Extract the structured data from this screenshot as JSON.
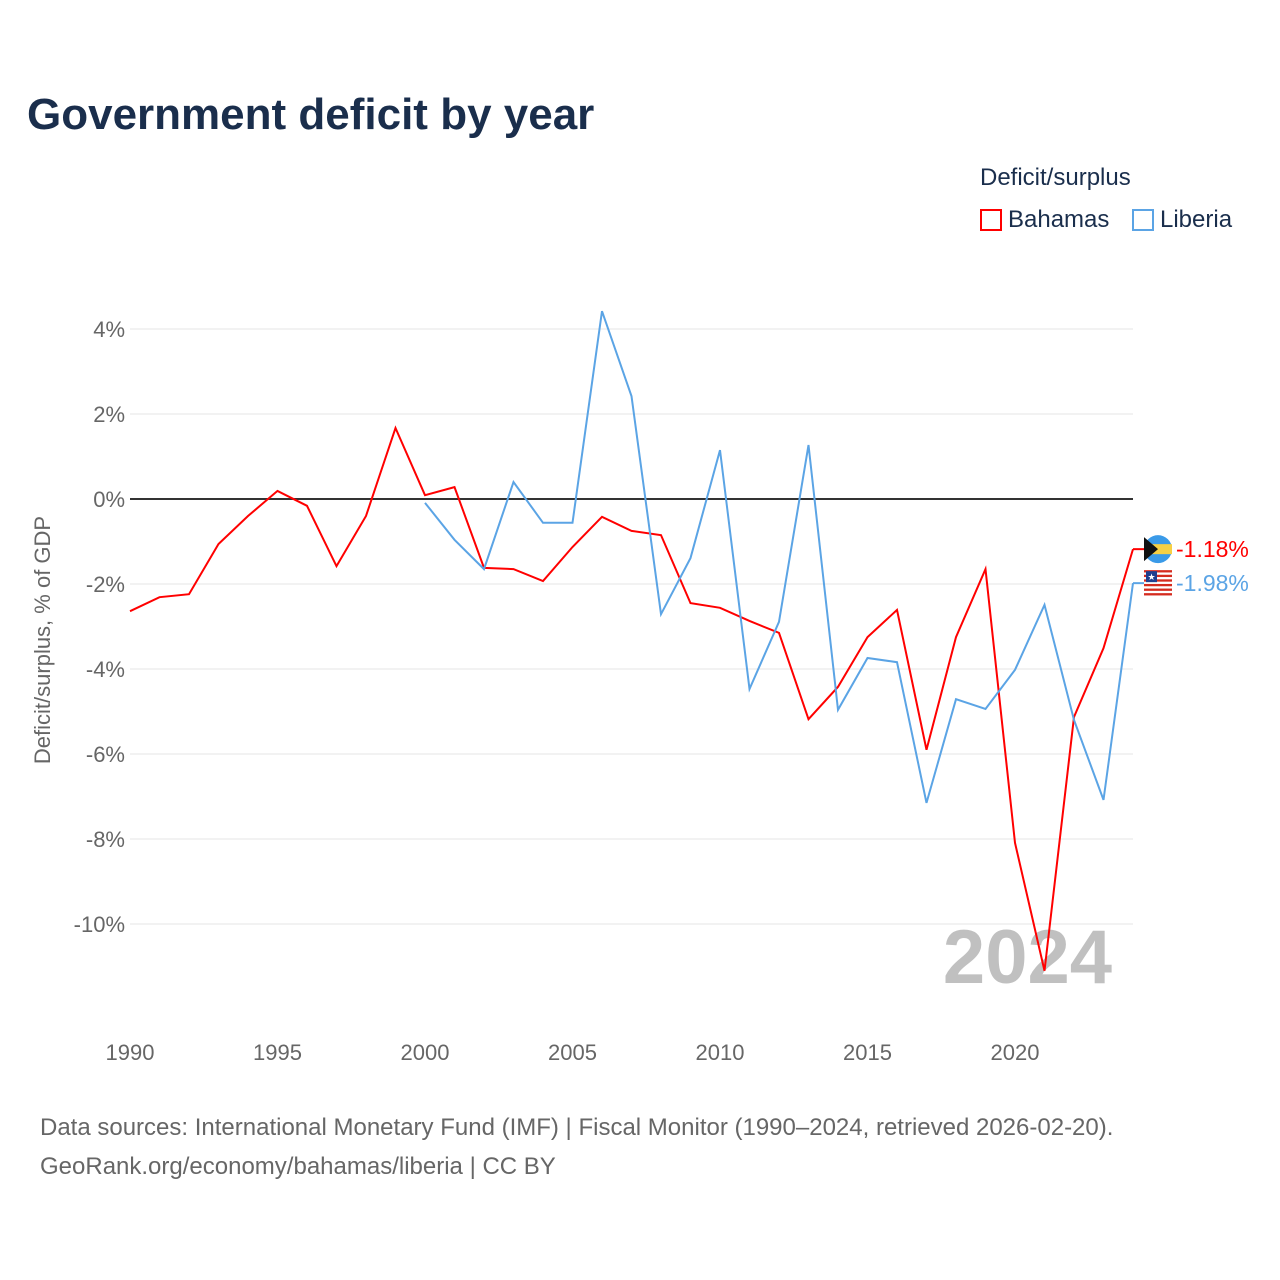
{
  "title": "Government deficit by year",
  "legend": {
    "title": "Deficit/surplus",
    "items": [
      {
        "label": "Bahamas",
        "color": "#ff0000"
      },
      {
        "label": "Liberia",
        "color": "#5ba4e5"
      }
    ]
  },
  "source": {
    "line1": "Data sources: International Monetary Fund (IMF) | Fiscal Monitor (1990–2024, retrieved 2026-02-20).",
    "line2": "GeoRank.org/economy/bahamas/liberia | CC BY"
  },
  "chart_data": {
    "type": "line",
    "title": "Government deficit by year",
    "ylabel": "Deficit/surplus, % of GDP",
    "xlabel": "",
    "xlim": [
      1990,
      2024
    ],
    "ylim": [
      -12,
      4.5
    ],
    "xticks": [
      "1990",
      "1995",
      "2000",
      "2005",
      "2010",
      "2015",
      "2020"
    ],
    "yticks": [
      "4%",
      "2%",
      "0%",
      "-2%",
      "-4%",
      "-6%",
      "-8%",
      "-10%"
    ],
    "ytick_values": [
      4,
      2,
      0,
      -2,
      -4,
      -6,
      -8,
      -10
    ],
    "watermark": "2024",
    "series": [
      {
        "name": "Bahamas",
        "color": "#ff0000",
        "end_label": "-1.18%",
        "x_start": 1990,
        "values": [
          -2.64,
          -2.31,
          -2.24,
          -1.06,
          -0.4,
          0.19,
          -0.16,
          -1.58,
          -0.4,
          1.67,
          0.09,
          0.28,
          -1.62,
          -1.65,
          -1.93,
          -1.13,
          -0.42,
          -0.75,
          -0.85,
          -2.45,
          -2.56,
          -2.87,
          -3.15,
          -5.18,
          -4.42,
          -3.25,
          -2.61,
          -5.9,
          -3.25,
          -1.65,
          -8.09,
          -11.1,
          -5.13,
          -3.51,
          -1.18
        ]
      },
      {
        "name": "Liberia",
        "color": "#5ba4e5",
        "end_label": "-1.98%",
        "x_start": 2000,
        "values": [
          -0.09,
          -0.96,
          -1.65,
          0.4,
          -0.56,
          -0.56,
          4.42,
          2.42,
          -2.71,
          -1.39,
          1.15,
          -4.47,
          -2.89,
          1.27,
          -4.96,
          -3.74,
          -3.84,
          -7.15,
          -4.71,
          -4.94,
          -4.02,
          -2.49,
          -5.2,
          -7.08,
          -1.98
        ]
      }
    ]
  }
}
